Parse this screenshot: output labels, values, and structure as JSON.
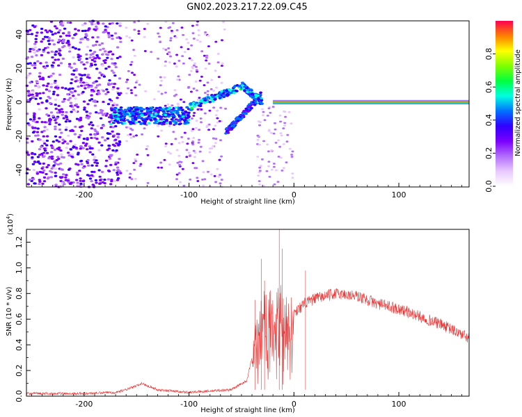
{
  "title": "GN02.2023.217.22.09.C45",
  "chart_data": [
    {
      "type": "heatmap",
      "xlabel": "Height of straight line (km)",
      "ylabel": "Frequency (Hz)",
      "xlim": [
        -255,
        167
      ],
      "ylim": [
        -50,
        48
      ],
      "xticks": [
        -200,
        -100,
        0,
        100
      ],
      "yticks": [
        -40,
        -20,
        0,
        20,
        40
      ],
      "colorbar": {
        "label": "Normalized spectral amplitude",
        "range": [
          0,
          1
        ],
        "ticks": [
          "0.0",
          "0.2",
          "0.4",
          "0.6",
          "0.8"
        ],
        "colormap": [
          "#ffffff",
          "#e9c8ff",
          "#b36cff",
          "#7a00ff",
          "#3000ff",
          "#0070ff",
          "#00ffe0",
          "#00ff40",
          "#80ff00",
          "#ffff00",
          "#ff8000",
          "#ff0050"
        ]
      },
      "features": {
        "background_noise": {
          "x": [
            -255,
            -165
          ],
          "y": [
            -50,
            48
          ],
          "amplitude": 0.25
        },
        "sparse_noise": {
          "x": [
            -160,
            -65
          ],
          "y": [
            -50,
            48
          ],
          "amplitude": 0.1
        },
        "sparse_noise_2": {
          "x": [
            -35,
            0
          ],
          "y": [
            -50,
            0
          ],
          "amplitude": 0.05
        },
        "tone": {
          "x": [
            -20,
            167
          ],
          "frequency": 0,
          "amplitude": 0.95
        },
        "tone_noise": {
          "x": [
            -175,
            -100
          ],
          "frequency": -8,
          "amplitude": 0.45
        },
        "chirp_segments": [
          {
            "x": [
              -100,
              -50
            ],
            "f": [
              -3,
              9
            ],
            "amplitude": 0.55
          },
          {
            "x": [
              -65,
              -30
            ],
            "f": [
              -18,
              5
            ],
            "amplitude": 0.45
          },
          {
            "x": [
              -50,
              -30
            ],
            "f": [
              10,
              0
            ],
            "amplitude": 0.5
          }
        ]
      }
    },
    {
      "type": "line",
      "xlabel": "Height of straight line (km)",
      "ylabel": "SNR (10 * v/v)",
      "y_multiplier": "(x10",
      "y_multiplier_exp": "4",
      "xlim": [
        -255,
        167
      ],
      "ylim": [
        0,
        1.3
      ],
      "xticks": [
        -200,
        -100,
        0,
        100
      ],
      "yticks": [
        "0.0",
        "0.2",
        "0.4",
        "0.6",
        "0.8",
        "1.0",
        "1.2"
      ],
      "series": [
        {
          "color": "#ee3333",
          "envelope": {
            "x": [
              -255,
              -200,
              -170,
              -160,
              -150,
              -145,
              -130,
              -100,
              -60,
              -45,
              -40,
              -36,
              -30,
              -25,
              -20,
              -15,
              -10,
              -5,
              0,
              10,
              20,
              30,
              40,
              60,
              80,
              100,
              120,
              140,
              160,
              167
            ],
            "y": [
              0.02,
              0.02,
              0.03,
              0.05,
              0.08,
              0.1,
              0.05,
              0.03,
              0.05,
              0.12,
              0.3,
              0.5,
              0.6,
              0.75,
              0.55,
              0.7,
              0.6,
              0.55,
              0.65,
              0.72,
              0.76,
              0.78,
              0.8,
              0.78,
              0.72,
              0.68,
              0.62,
              0.56,
              0.48,
              0.45
            ]
          },
          "spikes": [
            {
              "x": -31,
              "y": 1.07
            },
            {
              "x": -28,
              "y": 0.9
            },
            {
              "x": -14,
              "y": 1.3
            },
            {
              "x": -11,
              "y": 1.15
            },
            {
              "x": 11,
              "y": 0.98
            },
            {
              "x": -37,
              "y": 0.75
            }
          ]
        }
      ]
    }
  ]
}
